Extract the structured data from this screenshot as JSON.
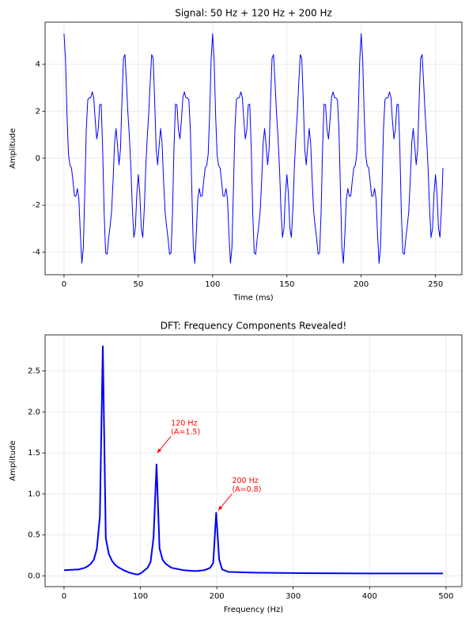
{
  "chart_data": [
    {
      "type": "line",
      "title": "Signal: 50 Hz + 120 Hz + 200 Hz",
      "x_label": "Time (ms)",
      "y_label": "Amplitude",
      "grid": true,
      "x": [
        0,
        1,
        2,
        3,
        4,
        5,
        6,
        7,
        8,
        9,
        10,
        11,
        12,
        13,
        14,
        15,
        16,
        17,
        18,
        19,
        20,
        21,
        22,
        23,
        24,
        25,
        26,
        27,
        28,
        29,
        30,
        31,
        32,
        33,
        34,
        35,
        36,
        37,
        38,
        39,
        40,
        41,
        42,
        43,
        44,
        45,
        46,
        47,
        48,
        49,
        50,
        51,
        52,
        53,
        54,
        55,
        56,
        57,
        58,
        59,
        60,
        61,
        62,
        63,
        64,
        65,
        66,
        67,
        68,
        69,
        70,
        71,
        72,
        73,
        74,
        75,
        76,
        77,
        78,
        79,
        80,
        81,
        82,
        83,
        84,
        85,
        86,
        87,
        88,
        89,
        90,
        91,
        92,
        93,
        94,
        95,
        96,
        97,
        98,
        99,
        100,
        101,
        102,
        103,
        104,
        105,
        106,
        107,
        108,
        109,
        110,
        111,
        112,
        113,
        114,
        115,
        116,
        117,
        118,
        119,
        120,
        121,
        122,
        123,
        124,
        125,
        126,
        127,
        128,
        129,
        130,
        131,
        132,
        133,
        134,
        135,
        136,
        137,
        138,
        139,
        140,
        141,
        142,
        143,
        144,
        145,
        146,
        147,
        148,
        149,
        150,
        151,
        152,
        153,
        154,
        155,
        156,
        157,
        158,
        159,
        160,
        161,
        162,
        163,
        164,
        165,
        166,
        167,
        168,
        169,
        170,
        171,
        172,
        173,
        174,
        175,
        176,
        177,
        178,
        179,
        180,
        181,
        182,
        183,
        184,
        185,
        186,
        187,
        188,
        189,
        190,
        191,
        192,
        193,
        194,
        195,
        196,
        197,
        198,
        199,
        200,
        201,
        202,
        203,
        204,
        205,
        206,
        207,
        208,
        209,
        210,
        211,
        212,
        213,
        214,
        215,
        216,
        217,
        218,
        219,
        220,
        221,
        222,
        223,
        224,
        225,
        226,
        227,
        228,
        229,
        230,
        231,
        232,
        233,
        234,
        235,
        236,
        237,
        238,
        239,
        240,
        241,
        242,
        243,
        244,
        245,
        246,
        247,
        248,
        249,
        250,
        251,
        252,
        253,
        254,
        255
      ],
      "series": [
        {
          "name": "signal",
          "color": "#0000ff",
          "values": [
            5.3,
            4.19,
            1.87,
            0.16,
            -0.31,
            -0.41,
            -0.96,
            -1.61,
            -1.62,
            -1.29,
            -1.74,
            -3.25,
            -4.47,
            -3.81,
            -1.32,
            1.26,
            2.49,
            2.57,
            2.58,
            2.82,
            2.59,
            1.61,
            0.82,
            1.21,
            2.27,
            2.3,
            0.41,
            -2.32,
            -4.03,
            -4.09,
            -3.41,
            -2.89,
            -2.27,
            -0.96,
            0.63,
            1.26,
            0.54,
            -0.28,
            0.39,
            2.46,
            4.26,
            4.41,
            3.23,
            1.92,
            0.89,
            -0.41,
            -2.17,
            -3.37,
            -2.98,
            -1.51,
            -0.7,
            -1.51,
            -2.98,
            -3.37,
            -2.17,
            -0.41,
            0.89,
            1.92,
            3.23,
            4.41,
            4.26,
            2.46,
            0.39,
            -0.28,
            0.54,
            1.26,
            0.63,
            -0.96,
            -2.27,
            -2.89,
            -3.41,
            -4.09,
            -4.03,
            -2.32,
            0.41,
            2.3,
            2.27,
            1.21,
            0.82,
            1.61,
            2.59,
            2.82,
            2.58,
            2.57,
            2.49,
            1.26,
            -1.32,
            -3.81,
            -4.47,
            -3.25,
            -1.74,
            -1.29,
            -1.62,
            -1.61,
            -0.96,
            -0.41,
            -0.31,
            0.16,
            1.87,
            4.19,
            5.3,
            4.19,
            1.87,
            0.16,
            -0.31,
            -0.41,
            -0.96,
            -1.61,
            -1.62,
            -1.29,
            -1.74,
            -3.25,
            -4.47,
            -3.81,
            -1.32,
            1.26,
            2.49,
            2.57,
            2.58,
            2.82,
            2.59,
            1.61,
            0.82,
            1.21,
            2.27,
            2.3,
            0.41,
            -2.32,
            -4.03,
            -4.09,
            -3.41,
            -2.89,
            -2.27,
            -0.96,
            0.63,
            1.26,
            0.54,
            -0.28,
            0.39,
            2.46,
            4.26,
            4.41,
            3.23,
            1.92,
            0.89,
            -0.41,
            -2.17,
            -3.37,
            -2.98,
            -1.51,
            -0.7,
            -1.51,
            -2.98,
            -3.37,
            -2.17,
            -0.41,
            0.89,
            1.92,
            3.23,
            4.41,
            4.26,
            2.46,
            0.39,
            -0.28,
            0.54,
            1.26,
            0.63,
            -0.96,
            -2.27,
            -2.89,
            -3.41,
            -4.09,
            -4.03,
            -2.32,
            0.41,
            2.3,
            2.27,
            1.21,
            0.82,
            1.61,
            2.59,
            2.82,
            2.58,
            2.57,
            2.49,
            1.26,
            -1.32,
            -3.81,
            -4.47,
            -3.25,
            -1.74,
            -1.29,
            -1.62,
            -1.61,
            -0.96,
            -0.41,
            -0.31,
            0.16,
            1.87,
            4.19,
            5.3,
            4.19,
            1.87,
            0.16,
            -0.31,
            -0.41,
            -0.96,
            -1.61,
            -1.62,
            -1.29,
            -1.74,
            -3.25,
            -4.47,
            -3.81,
            -1.32,
            1.26,
            2.49,
            2.57,
            2.58,
            2.82,
            2.59,
            1.61,
            0.82,
            1.21,
            2.27,
            2.3,
            0.41,
            -2.32,
            -4.03,
            -4.09,
            -3.41,
            -2.89,
            -2.27,
            -0.96,
            0.63,
            1.26,
            0.54,
            -0.28,
            0.39,
            2.46,
            4.26,
            4.41,
            3.23,
            1.92,
            0.89,
            -0.41,
            -2.17,
            -3.37,
            -2.98,
            -1.51,
            -0.7,
            -1.51,
            -2.98,
            -3.37,
            -2.17,
            -0.41
          ]
        }
      ],
      "xlim": [
        -12.75,
        267.75
      ],
      "xticks": [
        0,
        50,
        100,
        150,
        200,
        250
      ],
      "ylim": [
        -4.96,
        5.79
      ],
      "yticks": [
        -4,
        -2,
        0,
        2,
        4
      ]
    },
    {
      "type": "line",
      "title": "DFT: Frequency Components Revealed!",
      "x_label": "Frequency (Hz)",
      "y_label": "Amplitude",
      "grid": true,
      "x": [
        0,
        19.5,
        27.3,
        31.25,
        35.16,
        39.06,
        42.97,
        46.88,
        50.78,
        54.69,
        58.59,
        62.5,
        66.4,
        70.3,
        78.1,
        85.9,
        93.75,
        97.66,
        101.56,
        109.4,
        113.3,
        117.2,
        121.1,
        125,
        128.9,
        132.8,
        140.6,
        156.3,
        171.9,
        183.6,
        191.4,
        195.3,
        199.2,
        203.1,
        207,
        214.8,
        250,
        300,
        400,
        496.1
      ],
      "series": [
        {
          "name": "dft",
          "color": "#0000ff",
          "values": [
            0.07,
            0.08,
            0.1,
            0.12,
            0.15,
            0.2,
            0.33,
            0.72,
            2.8,
            0.46,
            0.27,
            0.19,
            0.14,
            0.11,
            0.07,
            0.04,
            0.02,
            0.02,
            0.04,
            0.1,
            0.17,
            0.47,
            1.36,
            0.34,
            0.2,
            0.15,
            0.1,
            0.07,
            0.06,
            0.07,
            0.1,
            0.16,
            0.77,
            0.2,
            0.08,
            0.05,
            0.04,
            0.035,
            0.03,
            0.03
          ]
        }
      ],
      "xlim": [
        -24.8,
        520.8
      ],
      "xticks": [
        0,
        100,
        200,
        300,
        400,
        500
      ],
      "ylim": [
        -0.13,
        2.94
      ],
      "yticks": [
        0.0,
        0.5,
        1.0,
        1.5,
        2.0,
        2.5
      ],
      "annotations": [
        {
          "lines": [
            "120 Hz",
            "(A=1.5)"
          ]
        },
        {
          "lines": [
            "200 Hz",
            "(A=0.8)"
          ]
        }
      ]
    }
  ]
}
